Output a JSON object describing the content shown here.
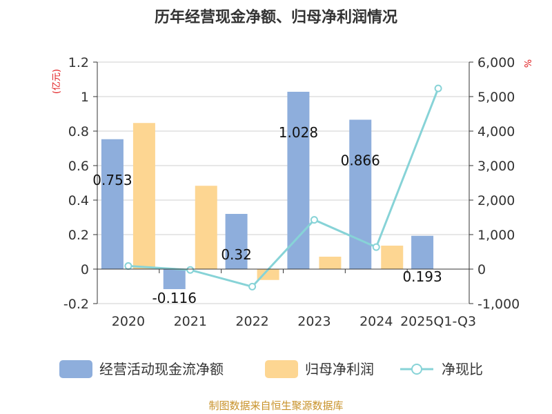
{
  "chart_data": {
    "type": "bar",
    "title": "历年经营现金净额、归母净利润情况",
    "categories": [
      "2020",
      "2021",
      "2022",
      "2023",
      "2024",
      "2025Q1-Q3"
    ],
    "y_left": {
      "unit": "(亿元)",
      "ylim": [
        -0.2,
        1.2
      ],
      "ticks": [
        "1.2",
        "1",
        "0.8",
        "0.6",
        "0.4",
        "0.2",
        "0",
        "-0.2"
      ]
    },
    "y_right": {
      "unit": "%",
      "ylim": [
        -1000,
        6000
      ],
      "ticks": [
        "6,000",
        "5,000",
        "4,000",
        "3,000",
        "2,000",
        "1,000",
        "0",
        "-1,000"
      ]
    },
    "series": [
      {
        "name": "经营活动现金流净额",
        "type": "bar",
        "axis": "left",
        "color": "#8eaedc",
        "values": [
          0.753,
          -0.116,
          0.32,
          1.028,
          0.866,
          0.193
        ],
        "labels": [
          "0.753",
          "-0.116",
          "0.32",
          "1.028",
          "0.866",
          "0.193"
        ]
      },
      {
        "name": "归母净利润",
        "type": "bar",
        "axis": "left",
        "color": "#fdd692",
        "values": [
          0.847,
          0.483,
          -0.063,
          0.072,
          0.136,
          0.002
        ]
      },
      {
        "name": "净现比",
        "type": "line",
        "axis": "right",
        "color": "#87d3d7",
        "values": [
          89,
          -24,
          -508,
          1428,
          637,
          5237
        ]
      }
    ],
    "legend": "bottom",
    "grid": true
  },
  "source": "制图数据来自恒生聚源数据库"
}
